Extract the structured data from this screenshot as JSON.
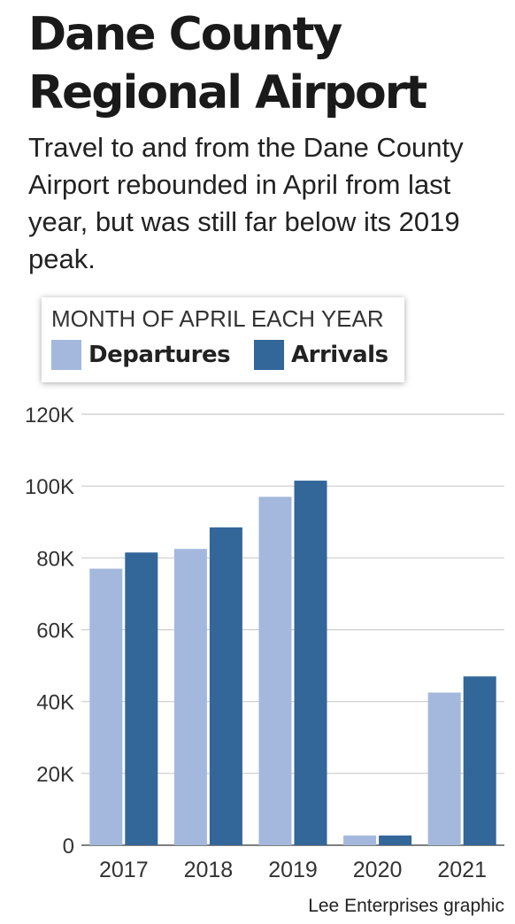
{
  "chart_data": {
    "type": "bar",
    "title": "Dane County Regional Airport",
    "subtitle": "Travel to and from the Dane County Airport rebounded in April from last year, but was still far below its 2019 peak.",
    "legend_title": "MONTH OF APRIL EACH YEAR",
    "legend_position": "top-left",
    "categories": [
      "2017",
      "2018",
      "2019",
      "2020",
      "2021"
    ],
    "series": [
      {
        "name": "Departures",
        "color": "#a3b8dc",
        "values": [
          77000,
          82500,
          97000,
          2700,
          42500
        ]
      },
      {
        "name": "Arrivals",
        "color": "#336699",
        "values": [
          81500,
          88500,
          101500,
          2700,
          47000
        ]
      }
    ],
    "ylim": [
      0,
      120000
    ],
    "yticks": [
      0,
      20000,
      40000,
      60000,
      80000,
      100000,
      120000
    ],
    "ytick_labels": [
      "0",
      "20K",
      "40K",
      "60K",
      "80K",
      "100K",
      "120K"
    ],
    "grid": true,
    "xlabel": "",
    "ylabel": ""
  },
  "credit": "Lee Enterprises graphic"
}
